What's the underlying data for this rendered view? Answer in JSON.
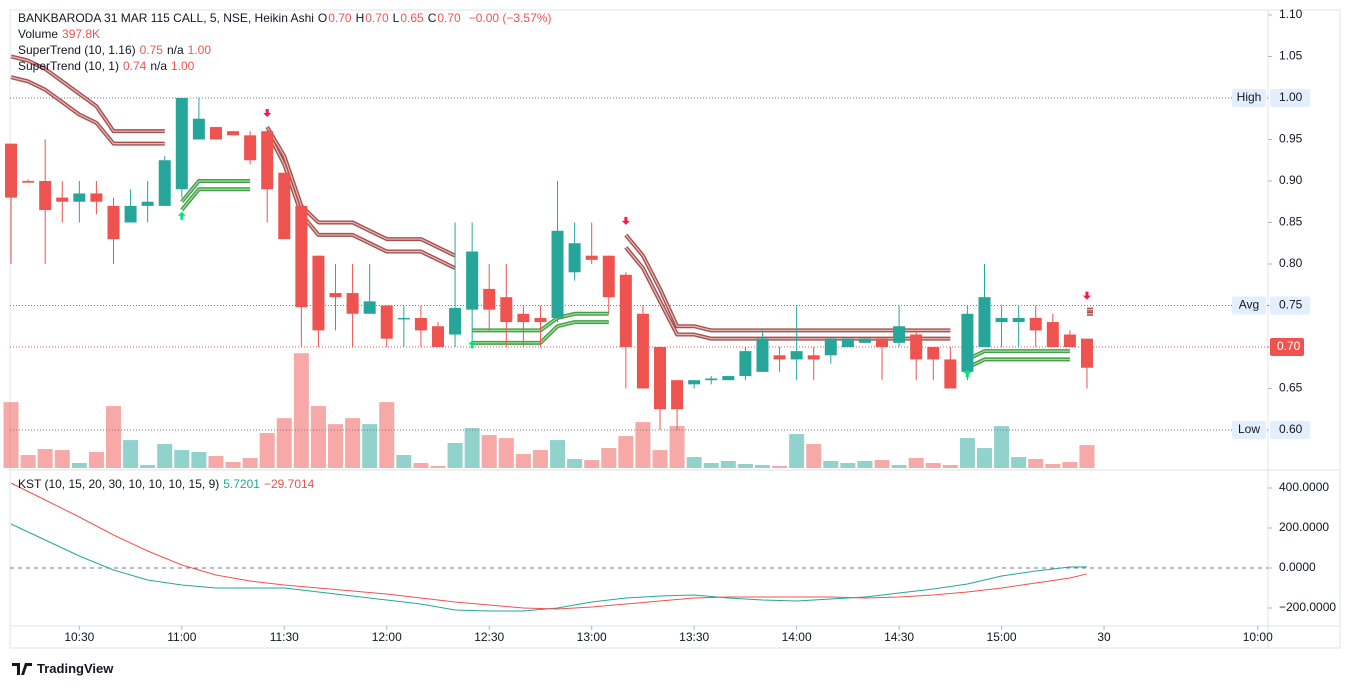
{
  "chart_data": [
    {
      "type": "candlestick",
      "header": {
        "symbol": "BANKBARODA 31 MAR 115 CALL, 5, NSE, Heikin Ashi",
        "ohlc": [
          {
            "key": "O",
            "text": "0.70"
          },
          {
            "key": "H",
            "text": "0.70"
          },
          {
            "key": "L",
            "text": "0.65"
          },
          {
            "key": "C",
            "text": "0.70"
          }
        ],
        "change": "−0.00 (−3.57%)"
      },
      "volume_name": "Volume",
      "volume_last": "397.8K",
      "up_color": "#26a69a",
      "down_color": "#ef5350",
      "xlim": [
        -0.06,
        73.6
      ],
      "xticks": [
        {
          "value": 4,
          "label": "10:30"
        },
        {
          "value": 10,
          "label": "11:00"
        },
        {
          "value": 16,
          "label": "11:30"
        },
        {
          "value": 22,
          "label": "12:00"
        },
        {
          "value": 28,
          "label": "12:30"
        },
        {
          "value": 34,
          "label": "13:00"
        },
        {
          "value": 40,
          "label": "13:30"
        },
        {
          "value": 46,
          "label": "14:00"
        },
        {
          "value": 52,
          "label": "14:30"
        },
        {
          "value": 58,
          "label": "15:00"
        },
        {
          "value": 64,
          "label": "30"
        },
        {
          "value": 73,
          "label": "10:00"
        }
      ],
      "ylim": [
        0.5542,
        1.106
      ],
      "yticks": [
        {
          "value": 1.1,
          "label": "1.10"
        },
        1.05,
        0.95,
        {
          "value": 0.9,
          "label": "0.90"
        },
        0.85,
        {
          "value": 0.8,
          "label": "0.80"
        },
        0.75,
        {
          "value": 0.7,
          "label": "0.70"
        },
        0.65
      ],
      "levels": [
        {
          "name": "High",
          "value": 1.0,
          "label": "1.00"
        },
        {
          "name": "Avg",
          "value": 0.75,
          "label": "0.75"
        },
        {
          "name": "Low",
          "value": 0.6,
          "label": "0.60"
        }
      ],
      "last_price": {
        "value": 0.7,
        "label": "0.70"
      },
      "open": [
        0.945,
        0.9,
        0.9,
        0.88,
        0.875,
        0.885,
        0.87,
        0.85,
        0.87,
        0.87,
        0.89,
        0.95,
        0.965,
        0.96,
        0.955,
        0.96,
        0.91,
        0.87,
        0.81,
        0.765,
        0.765,
        0.74,
        0.75,
        0.735,
        0.735,
        0.725,
        0.715,
        0.745,
        0.77,
        0.76,
        0.74,
        0.735,
        0.735,
        0.79,
        0.81,
        0.81,
        0.787,
        0.74,
        0.7,
        0.66,
        0.655,
        0.66,
        0.66,
        0.665,
        0.67,
        0.69,
        0.685,
        0.69,
        0.69,
        0.7,
        0.705,
        0.71,
        0.705,
        0.715,
        0.7,
        0.685,
        0.67,
        0.7,
        0.73,
        0.73,
        0.735,
        0.73,
        0.715,
        0.71
      ],
      "high": [
        0.945,
        0.902,
        0.95,
        0.9,
        0.9,
        0.9,
        0.88,
        0.89,
        0.9,
        0.93,
        1.0,
        1.0,
        0.965,
        0.96,
        0.96,
        0.965,
        0.91,
        0.87,
        0.81,
        0.8,
        0.8,
        0.8,
        0.75,
        0.75,
        0.75,
        0.73,
        0.85,
        0.85,
        0.8,
        0.8,
        0.75,
        0.75,
        0.9,
        0.85,
        0.85,
        0.81,
        0.79,
        0.75,
        0.7,
        0.66,
        0.66,
        0.665,
        0.665,
        0.7,
        0.72,
        0.7,
        0.75,
        0.7,
        0.71,
        0.71,
        0.71,
        0.71,
        0.75,
        0.72,
        0.7,
        0.7,
        0.75,
        0.8,
        0.75,
        0.75,
        0.75,
        0.74,
        0.72,
        0.71
      ],
      "low": [
        0.8,
        0.898,
        0.8,
        0.85,
        0.85,
        0.86,
        0.8,
        0.85,
        0.85,
        0.87,
        0.88,
        0.95,
        0.95,
        0.955,
        0.92,
        0.85,
        0.83,
        0.7,
        0.7,
        0.72,
        0.7,
        0.74,
        0.7,
        0.7,
        0.7,
        0.7,
        0.7,
        0.7,
        0.72,
        0.7,
        0.7,
        0.7,
        0.73,
        0.78,
        0.8,
        0.74,
        0.65,
        0.65,
        0.6,
        0.6,
        0.65,
        0.655,
        0.66,
        0.66,
        0.67,
        0.67,
        0.66,
        0.66,
        0.68,
        0.7,
        0.705,
        0.66,
        0.7,
        0.66,
        0.66,
        0.65,
        0.66,
        0.7,
        0.7,
        0.7,
        0.7,
        0.7,
        0.7,
        0.65
      ],
      "close": [
        0.88,
        0.898,
        0.865,
        0.875,
        0.885,
        0.875,
        0.83,
        0.87,
        0.875,
        0.925,
        1.0,
        0.975,
        0.95,
        0.955,
        0.925,
        0.89,
        0.83,
        0.748,
        0.72,
        0.76,
        0.74,
        0.755,
        0.71,
        0.735,
        0.72,
        0.7,
        0.747,
        0.815,
        0.745,
        0.73,
        0.73,
        0.73,
        0.84,
        0.825,
        0.805,
        0.76,
        0.7,
        0.65,
        0.625,
        0.625,
        0.66,
        0.662,
        0.665,
        0.695,
        0.71,
        0.685,
        0.695,
        0.685,
        0.71,
        0.71,
        0.71,
        0.7,
        0.725,
        0.685,
        0.685,
        0.65,
        0.74,
        0.76,
        0.735,
        0.735,
        0.72,
        0.7,
        0.7,
        0.675
      ],
      "volume_lim": [
        0,
        2080000
      ],
      "volume": [
        1142000,
        225000,
        329000,
        311000,
        87000,
        277000,
        1073000,
        484000,
        52000,
        415000,
        311000,
        277000,
        208000,
        104000,
        173000,
        606000,
        865000,
        1990000,
        1073000,
        761000,
        865000,
        761000,
        1142000,
        225000,
        87000,
        35000,
        433000,
        692000,
        571000,
        519000,
        242000,
        311000,
        484000,
        156000,
        138000,
        346000,
        554000,
        796000,
        311000,
        727000,
        190000,
        87000,
        121000,
        69000,
        52000,
        35000,
        588000,
        415000,
        121000,
        87000,
        121000,
        138000,
        52000,
        173000,
        87000,
        52000,
        519000,
        346000,
        727000,
        190000,
        156000,
        69000,
        104000,
        397800
      ],
      "supertrend": [
        {
          "name": "SuperTrend (10, 1.16)",
          "legend": [
            "0.75",
            "n/a",
            "1.00"
          ],
          "up_color": "#43a047",
          "down_color": "#a5504f",
          "down": [
            1.05,
            1.045,
            1.035,
            1.02,
            1.005,
            0.99,
            0.96,
            0.96,
            0.96,
            0.96,
            null,
            null,
            null,
            null,
            null,
            0.965,
            0.93,
            0.87,
            0.85,
            0.85,
            0.85,
            0.84,
            0.83,
            0.83,
            0.83,
            0.82,
            0.81,
            null,
            null,
            null,
            null,
            null,
            null,
            null,
            null,
            null,
            0.835,
            0.81,
            0.77,
            0.725,
            0.725,
            0.72,
            0.72,
            0.72,
            0.72,
            0.72,
            0.72,
            0.72,
            0.72,
            0.72,
            0.72,
            0.72,
            0.72,
            0.72,
            0.72,
            0.72,
            null,
            null,
            null,
            null,
            null,
            null,
            null,
            0.745
          ],
          "up": [
            null,
            null,
            null,
            null,
            null,
            null,
            null,
            null,
            null,
            null,
            0.875,
            0.9,
            0.9,
            0.9,
            0.9,
            null,
            null,
            null,
            null,
            null,
            null,
            null,
            null,
            null,
            null,
            null,
            null,
            0.72,
            0.72,
            0.72,
            0.72,
            0.72,
            0.735,
            0.74,
            0.74,
            0.74,
            null,
            null,
            null,
            null,
            null,
            null,
            null,
            null,
            null,
            null,
            null,
            null,
            null,
            null,
            null,
            null,
            null,
            null,
            null,
            null,
            0.685,
            0.695,
            0.695,
            0.695,
            0.695,
            0.695,
            0.695,
            null
          ]
        },
        {
          "name": "SuperTrend (10, 1)",
          "legend": [
            "0.74",
            "n/a",
            "1.00"
          ],
          "up_color": "#43a047",
          "down_color": "#a5504f",
          "down": [
            1.025,
            1.02,
            1.01,
            0.995,
            0.98,
            0.97,
            0.945,
            0.945,
            0.945,
            0.945,
            null,
            null,
            null,
            null,
            null,
            0.96,
            0.92,
            0.86,
            0.835,
            0.835,
            0.835,
            0.825,
            0.815,
            0.815,
            0.815,
            0.805,
            0.795,
            null,
            null,
            null,
            null,
            null,
            null,
            null,
            null,
            null,
            0.82,
            0.795,
            0.755,
            0.715,
            0.715,
            0.71,
            0.71,
            0.71,
            0.71,
            0.71,
            0.71,
            0.71,
            0.71,
            0.71,
            0.71,
            0.71,
            0.71,
            0.71,
            0.71,
            0.71,
            null,
            null,
            null,
            null,
            null,
            null,
            null,
            0.74
          ],
          "up": [
            null,
            null,
            null,
            null,
            null,
            null,
            null,
            null,
            null,
            null,
            0.865,
            0.89,
            0.89,
            0.89,
            0.89,
            null,
            null,
            null,
            null,
            null,
            null,
            null,
            null,
            null,
            null,
            null,
            null,
            0.705,
            0.705,
            0.705,
            0.705,
            0.705,
            0.725,
            0.73,
            0.73,
            0.73,
            null,
            null,
            null,
            null,
            null,
            null,
            null,
            null,
            null,
            null,
            null,
            null,
            null,
            null,
            null,
            null,
            null,
            null,
            null,
            null,
            0.675,
            0.685,
            0.685,
            0.685,
            0.685,
            0.685,
            0.685,
            null
          ]
        }
      ]
    },
    {
      "type": "line",
      "name": "KST (10, 15, 20, 30, 10, 10, 10, 15, 9)",
      "ylim": [
        -285,
        450
      ],
      "yticks": [
        {
          "value": 400,
          "label": "400.0000"
        },
        {
          "value": 200,
          "label": "200.0000"
        },
        {
          "value": 0,
          "label": "0.0000"
        },
        {
          "value": -200,
          "label": "−200.0000"
        }
      ],
      "x": [
        0,
        2,
        4,
        6,
        8,
        10,
        12,
        14,
        16,
        18,
        20,
        22,
        24,
        26,
        28,
        30,
        32,
        34,
        36,
        38,
        40,
        42,
        44,
        46,
        48,
        50,
        52,
        54,
        56,
        58,
        60,
        62,
        63
      ],
      "series": [
        {
          "color": "#26a69a",
          "last_label": "5.7201",
          "values": [
            220,
            140,
            60,
            -10,
            -60,
            -85,
            -100,
            -100,
            -100,
            -120,
            -140,
            -160,
            -180,
            -210,
            -215,
            -215,
            -200,
            -170,
            -150,
            -140,
            -135,
            -150,
            -160,
            -165,
            -155,
            -145,
            -125,
            -105,
            -80,
            -40,
            -15,
            5,
            5.7201
          ]
        },
        {
          "color": "#ef5350",
          "last_label": "−29.7014",
          "values": [
            425,
            340,
            255,
            165,
            85,
            15,
            -35,
            -65,
            -85,
            -100,
            -115,
            -130,
            -150,
            -170,
            -185,
            -200,
            -205,
            -195,
            -180,
            -165,
            -150,
            -145,
            -145,
            -145,
            -145,
            -150,
            -145,
            -135,
            -120,
            -100,
            -75,
            -50,
            -29.7014
          ]
        }
      ]
    },
    {
      "type": "brand",
      "text": "TradingView"
    }
  ]
}
